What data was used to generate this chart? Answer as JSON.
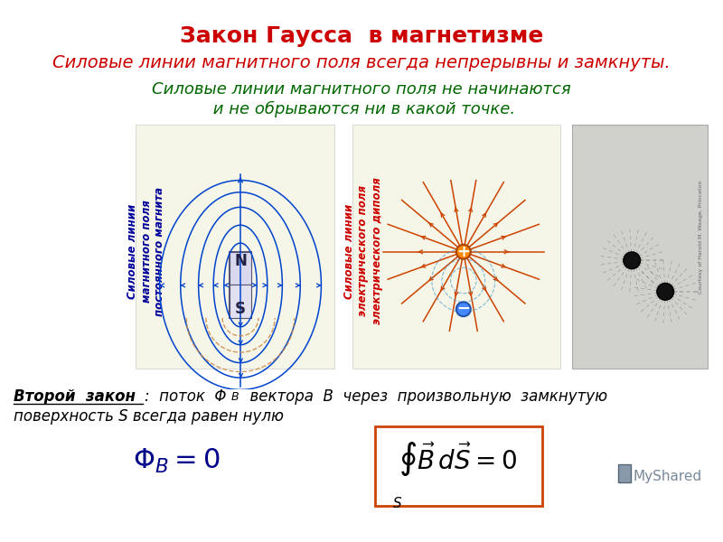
{
  "title": "Закон Гаусса  в магнетизме",
  "title_color": "#cc0000",
  "title_fontsize": 18,
  "subtitle1": "Силовые линии магнитного поля всегда непрерывны и замкнуты.",
  "subtitle1_color": "#cc0000",
  "subtitle1_fontsize": 14,
  "subtitle2_line1": "Силовые линии магнитного поля не начинаются",
  "subtitle2_line2": " и не обрываются ни в какой точке.",
  "subtitle2_color": "#006600",
  "subtitle2_fontsize": 13,
  "left_label": "Силовые линии\nмагнитного поля\nпостоянного магнита",
  "left_label_color": "#000099",
  "right_label": "Силовые линии\nэлектрического поля\nэлектрического диполя",
  "right_label_color": "#cc0000",
  "field_line_color": "#0044cc",
  "dipole_line_color": "#cc4400",
  "bg_color": "#ffffff",
  "panel_bg": "#f5f5e8",
  "formula_box_color": "#cc4400",
  "dashed_color": "#cc8844"
}
